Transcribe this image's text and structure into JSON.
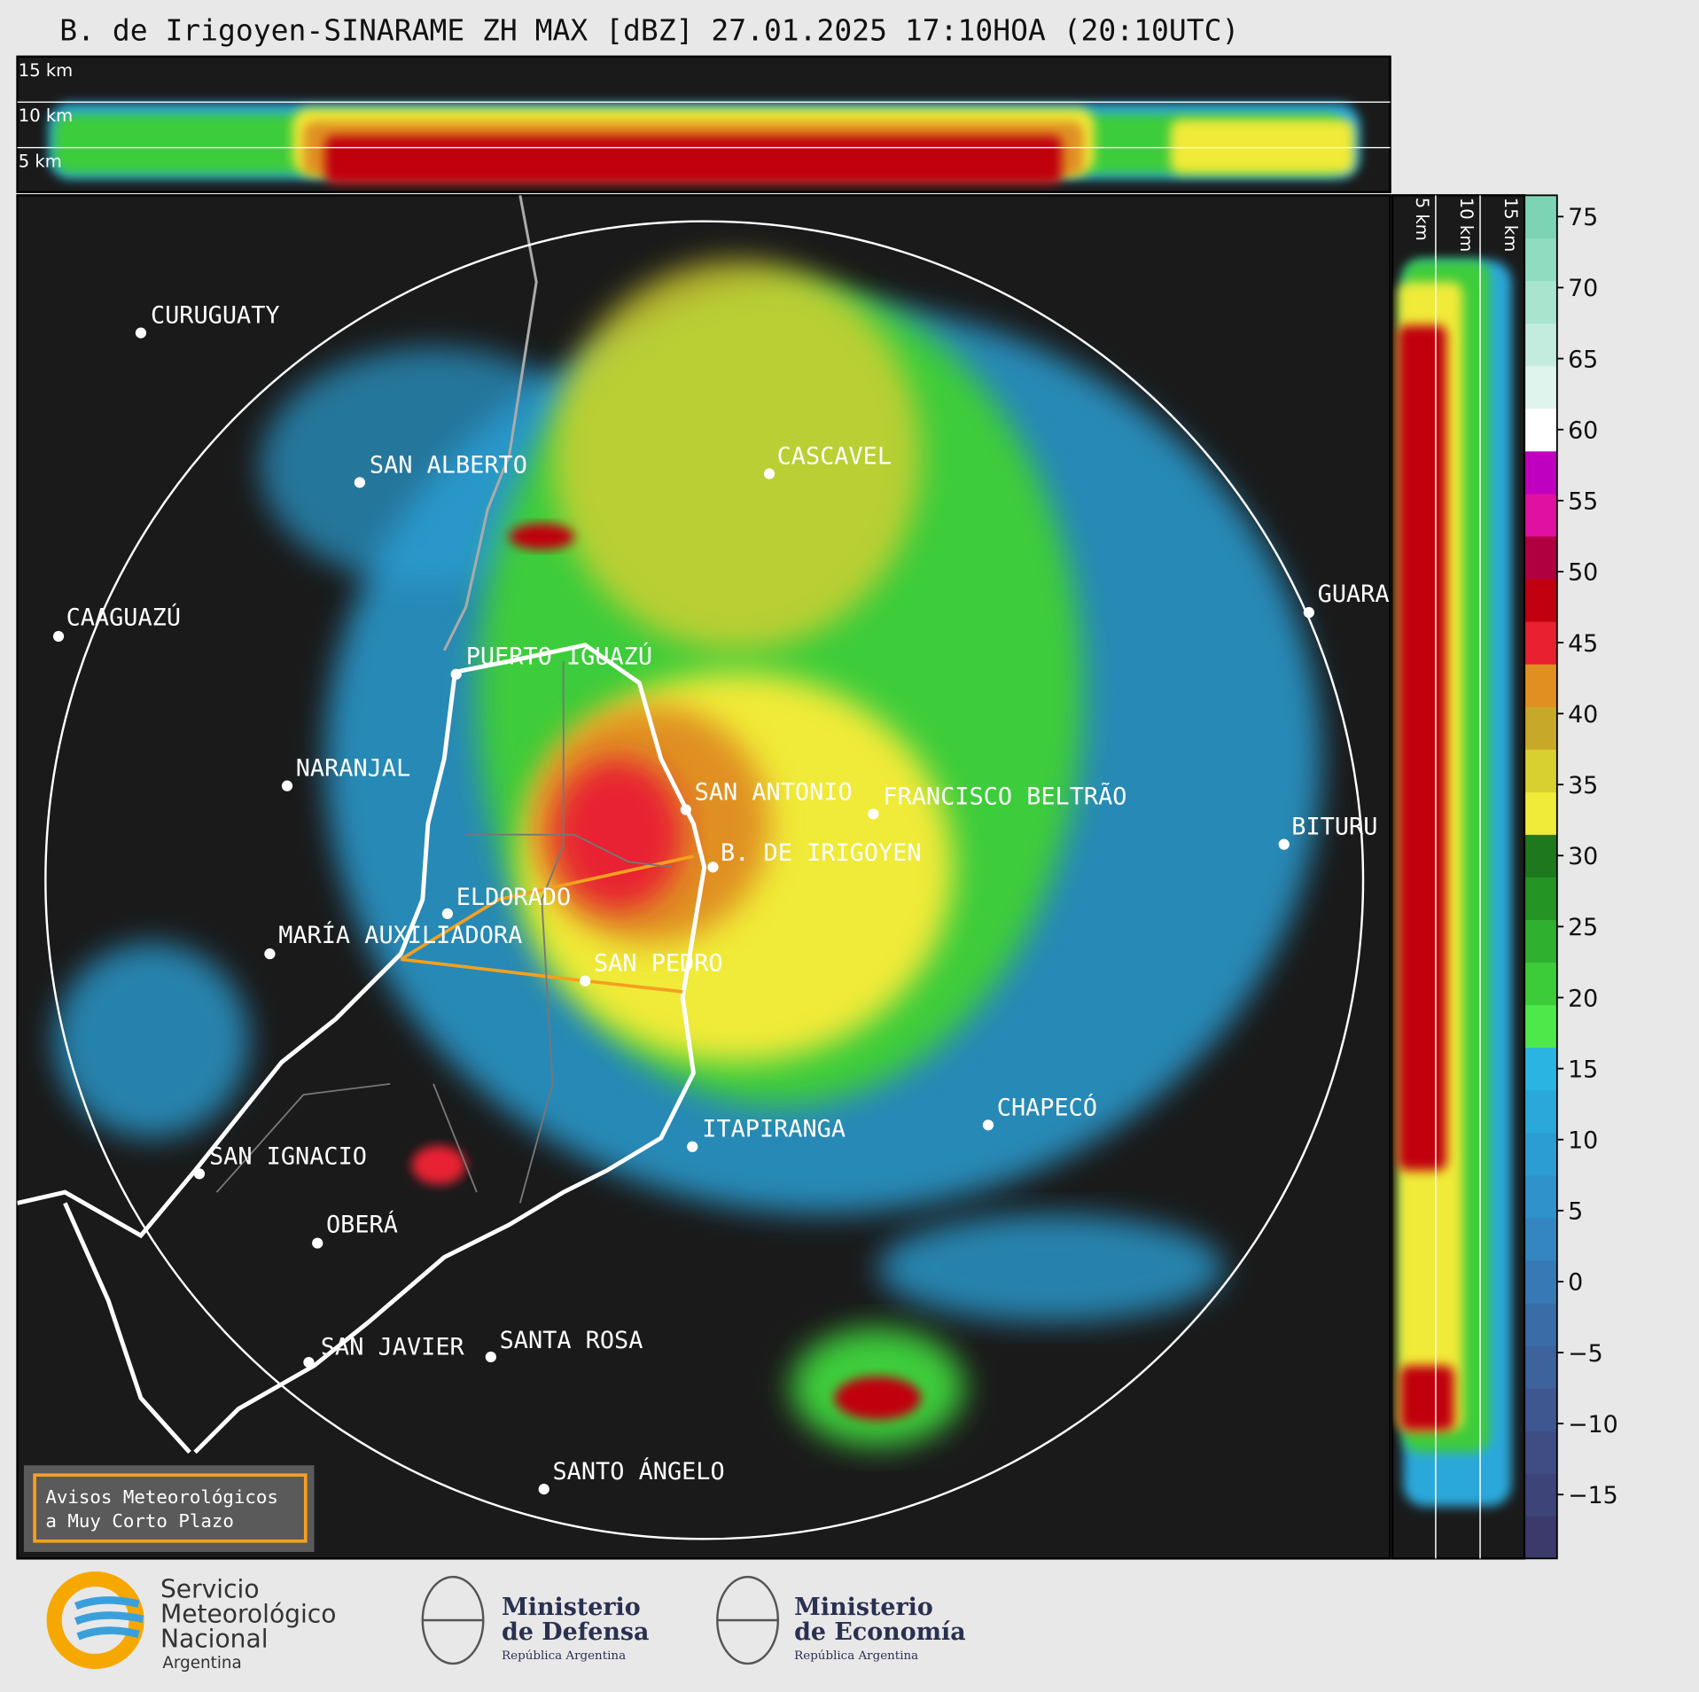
{
  "header": {
    "title": "B. de Irigoyen-SINARAME ZH MAX [dBZ] 27.01.2025 17:10HOA (20:10UTC)"
  },
  "top_panel": {
    "altitudes": [
      "15 km",
      "10 km",
      "5 km"
    ]
  },
  "side_panel": {
    "altitudes": [
      "5 km",
      "10 km",
      "15 km"
    ]
  },
  "cities": [
    {
      "label": "CURUGUATY"
    },
    {
      "label": "SAN ALBERTO"
    },
    {
      "label": "CASCAVEL"
    },
    {
      "label": "CAAGUAZÚ"
    },
    {
      "label": "GUARA"
    },
    {
      "label": "PUERTO IGUAZÚ"
    },
    {
      "label": "NARANJAL"
    },
    {
      "label": "SAN ANTONIO"
    },
    {
      "label": "FRANCISCO BELTRÃO"
    },
    {
      "label": "BITURU"
    },
    {
      "label": "B. DE IRIGOYEN"
    },
    {
      "label": "ELDORADO"
    },
    {
      "label": "MARÍA AUXILIADORA"
    },
    {
      "label": "SAN PEDRO"
    },
    {
      "label": "CHAPECÓ"
    },
    {
      "label": "ITAPIRANGA"
    },
    {
      "label": "SAN IGNACIO"
    },
    {
      "label": "OBERÁ"
    },
    {
      "label": "SAN JAVIER"
    },
    {
      "label": "SANTA ROSA"
    },
    {
      "label": "SANTO ÁNGELO"
    }
  ],
  "colorbar": {
    "lim": [
      -19.5,
      76.5
    ],
    "ticks": [
      75,
      70,
      65,
      60,
      55,
      50,
      45,
      40,
      35,
      30,
      25,
      20,
      15,
      10,
      5,
      0,
      {
        "value": -5,
        "label": "−5"
      },
      {
        "value": -10,
        "label": "−10"
      },
      {
        "value": -15,
        "label": "−15"
      }
    ],
    "colors": [
      "#3b3a6b",
      "#3d4478",
      "#3f4d84",
      "#3f5790",
      "#3d629c",
      "#3a6da8",
      "#3779b4",
      "#3386c0",
      "#2f92ca",
      "#2c9dd2",
      "#2aa8da",
      "#2ab4e2",
      "#4ee84a",
      "#3ccc3a",
      "#2fb02e",
      "#249424",
      "#1e781e",
      "#f0ea38",
      "#d8d030",
      "#c8a828",
      "#e09020",
      "#e82030",
      "#c00010",
      "#b00040",
      "#e010a0",
      "#c000c0",
      "#ffffff",
      "#e0f4ee",
      "#c4ecde",
      "#a8e4ce",
      "#90dcc0",
      "#7cd4b4"
    ]
  },
  "warning_box": {
    "lines": [
      "Avisos Meteorológicos",
      "a Muy Corto Plazo"
    ]
  },
  "footer": {
    "smn": [
      "Servicio",
      "Meteorológico",
      "Nacional",
      "Argentina"
    ],
    "defensa": [
      "Ministerio",
      "de Defensa",
      "República Argentina"
    ],
    "economia": [
      "Ministerio",
      "de Economía",
      "República Argentina"
    ]
  }
}
